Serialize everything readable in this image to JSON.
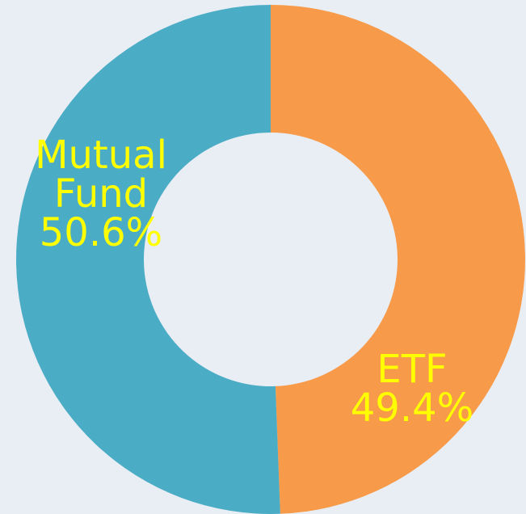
{
  "chart_data": {
    "type": "pie",
    "hole": true,
    "categories": [
      "ETF",
      "Mutual Fund"
    ],
    "values": [
      49.4,
      50.6
    ],
    "value_labels": [
      "49.4%",
      "50.6%"
    ],
    "colors": [
      "#f79a4a",
      "#4bacc6"
    ],
    "label_color": "#ffff00"
  }
}
